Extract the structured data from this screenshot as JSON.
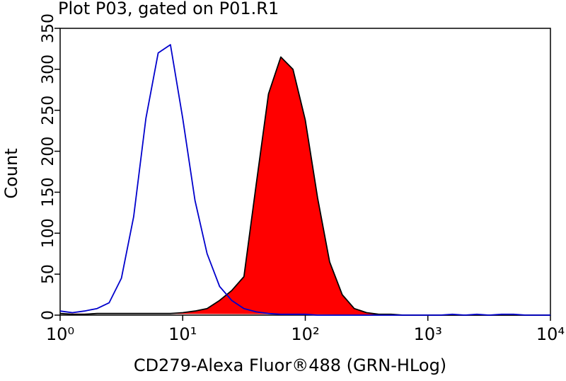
{
  "chart_data": {
    "type": "area",
    "title": "Plot P03, gated on P01.R1",
    "x_label": "CD279-Alexa Fluor®488 (GRN-HLog)",
    "y_label": "Count",
    "x_scale": "log",
    "x": [
      1,
      1.26,
      1.58,
      2,
      2.51,
      3.16,
      3.98,
      5.01,
      6.31,
      7.94,
      10,
      12.6,
      15.8,
      20,
      25.1,
      31.6,
      39.8,
      50.1,
      63.1,
      79.4,
      100,
      126,
      158,
      200,
      251,
      316,
      398,
      501,
      631,
      794,
      1000,
      1260,
      1580,
      2000,
      2510,
      3160,
      3980,
      5010,
      6310,
      7940,
      10000
    ],
    "series": [
      {
        "color": "#0000cc",
        "filled": false,
        "values": [
          5,
          3,
          5,
          8,
          15,
          45,
          120,
          240,
          320,
          330,
          240,
          140,
          75,
          35,
          18,
          8,
          4,
          2,
          1,
          1,
          1,
          0,
          0,
          0,
          0,
          0,
          0,
          0,
          0,
          0,
          0,
          0,
          1,
          0,
          1,
          0,
          1,
          1,
          0,
          0,
          0
        ]
      },
      {
        "color": "#ff0000",
        "filled": true,
        "values": [
          2,
          1,
          1,
          2,
          2,
          2,
          2,
          2,
          2,
          2,
          3,
          5,
          8,
          18,
          30,
          47,
          160,
          270,
          315,
          300,
          238,
          143,
          65,
          25,
          8,
          3,
          1,
          1,
          0,
          0,
          0,
          0,
          0,
          0,
          0,
          0,
          0,
          0,
          0,
          0,
          0
        ]
      }
    ],
    "xlim": [
      1,
      10000
    ],
    "xticks": [
      {
        "value": 1,
        "label": "10⁰"
      },
      {
        "value": 10,
        "label": "10¹"
      },
      {
        "value": 100,
        "label": "10²"
      },
      {
        "value": 1000,
        "label": "10³"
      },
      {
        "value": 10000,
        "label": "10⁴"
      }
    ],
    "ylim": [
      0,
      350
    ],
    "yticks": [
      0,
      50,
      100,
      150,
      200,
      250,
      300,
      350
    ]
  }
}
